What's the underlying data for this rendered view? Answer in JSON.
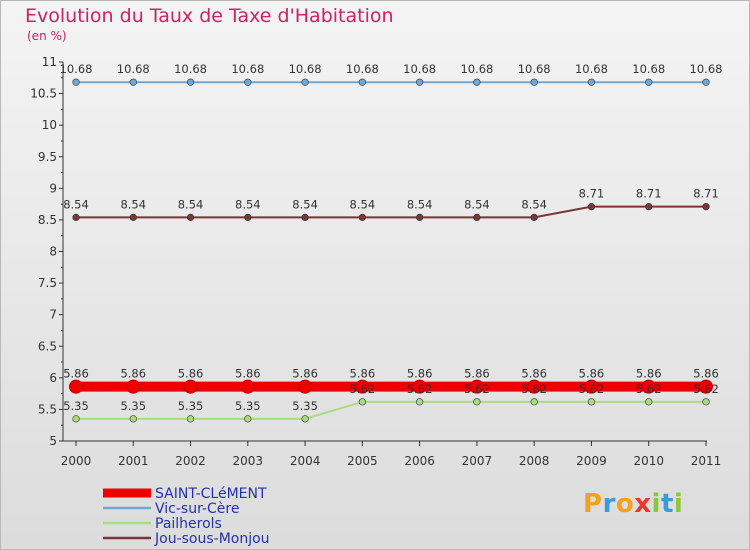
{
  "title": "Evolution du Taux de Taxe d'Habitation",
  "unit": "(en %)",
  "logo": {
    "text": "Proxiti",
    "letters": [
      {
        "ch": "P",
        "color": "#f4a020"
      },
      {
        "ch": "r",
        "color": "#3a9bd9"
      },
      {
        "ch": "o",
        "color": "#f4a020"
      },
      {
        "ch": "x",
        "color": "#e8392a"
      },
      {
        "ch": "i",
        "color": "#8cc63f"
      },
      {
        "ch": "t",
        "color": "#3a9bd9"
      },
      {
        "ch": "i",
        "color": "#8cc63f"
      }
    ]
  },
  "chart_data": {
    "type": "line",
    "title": "Evolution du Taux de Taxe d'Habitation",
    "ylabel": "(en %)",
    "x": [
      "2000",
      "2001",
      "2002",
      "2003",
      "2004",
      "2005",
      "2006",
      "2007",
      "2008",
      "2009",
      "2010",
      "2011"
    ],
    "ylim": [
      5,
      11
    ],
    "yticks": [
      "5",
      "5.5",
      "6",
      "6.5",
      "7",
      "7.5",
      "8",
      "8.5",
      "9",
      "9.5",
      "10",
      "10.5",
      "11"
    ],
    "legend_position": "bottom-left",
    "series": [
      {
        "name": "SAINT-CLéMENT",
        "color": "#ee0000",
        "values": [
          5.86,
          5.86,
          5.86,
          5.86,
          5.86,
          5.86,
          5.86,
          5.86,
          5.86,
          5.86,
          5.86,
          5.86
        ],
        "labels": [
          "5.86",
          "5.86",
          "5.86",
          "5.86",
          "5.86",
          "5.86",
          "5.86",
          "5.86",
          "5.86",
          "5.86",
          "5.86",
          "5.86"
        ]
      },
      {
        "name": "Vic-sur-Cère",
        "color": "#6fa8d6",
        "values": [
          10.68,
          10.68,
          10.68,
          10.68,
          10.68,
          10.68,
          10.68,
          10.68,
          10.68,
          10.68,
          10.68,
          10.68
        ],
        "labels": [
          "10.68",
          "10.68",
          "10.68",
          "10.68",
          "10.68",
          "10.68",
          "10.68",
          "10.68",
          "10.68",
          "10.68",
          "10.68",
          "10.68"
        ]
      },
      {
        "name": "Pailherols",
        "color": "#a6dd80",
        "values": [
          5.35,
          5.35,
          5.35,
          5.35,
          5.35,
          5.62,
          5.62,
          5.62,
          5.62,
          5.62,
          5.62,
          5.62
        ],
        "labels": [
          "5.35",
          "5.35",
          "5.35",
          "5.35",
          "5.35",
          "5.62",
          "5.62",
          "5.62",
          "5.62",
          "5.62",
          "5.62",
          "5.62"
        ]
      },
      {
        "name": "Jou-sous-Monjou",
        "color": "#7a3636",
        "values": [
          8.54,
          8.54,
          8.54,
          8.54,
          8.54,
          8.54,
          8.54,
          8.54,
          8.54,
          8.71,
          8.71,
          8.71
        ],
        "labels": [
          "8.54",
          "8.54",
          "8.54",
          "8.54",
          "8.54",
          "8.54",
          "8.54",
          "8.54",
          "8.54",
          "8.71",
          "8.71",
          "8.71"
        ]
      }
    ]
  }
}
